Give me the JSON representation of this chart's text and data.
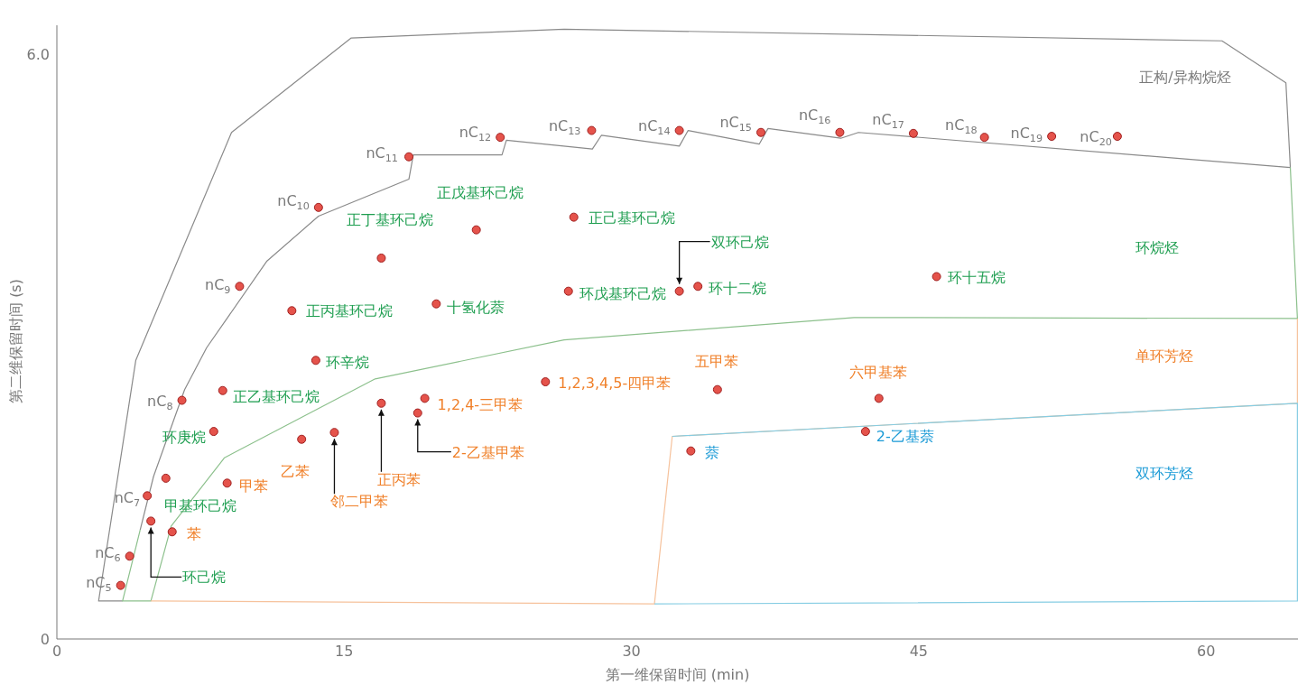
{
  "chart_data": {
    "type": "scatter",
    "xlabel": "第一维保留时间 (min)",
    "ylabel": "第二维保留时间 (s)",
    "xlim": [
      0,
      64.8
    ],
    "ylim": [
      0,
      6.3
    ],
    "xticks": [
      0,
      15,
      30,
      45,
      60
    ],
    "yticks": [
      0,
      {
        "value": 6,
        "label": "6.0"
      }
    ],
    "grid": false,
    "series": [
      {
        "marker": "circle",
        "color": "#e5534b",
        "x": [
          3.33,
          3.8,
          4.72,
          6.53,
          9.54,
          13.66,
          18.38,
          23.15,
          27.92,
          32.5,
          36.76,
          40.88,
          44.72,
          48.43,
          51.94,
          55.37,
          4.91,
          5.69,
          8.19,
          8.66,
          13.52,
          12.27,
          16.94,
          19.81,
          21.9,
          26.99,
          26.71,
          32.5,
          33.47,
          45.93,
          6.02,
          8.89,
          12.78,
          14.49,
          16.94,
          18.84,
          19.21,
          25.51,
          34.49,
          42.92,
          33.1,
          42.22
        ],
        "values": [
          0.55,
          0.85,
          1.47,
          2.45,
          3.62,
          4.43,
          4.95,
          5.15,
          5.22,
          5.22,
          5.2,
          5.2,
          5.19,
          5.15,
          5.16,
          5.16,
          1.21,
          1.65,
          2.13,
          2.55,
          2.86,
          3.37,
          3.91,
          3.44,
          4.2,
          4.33,
          3.57,
          3.57,
          3.62,
          3.72,
          1.1,
          1.6,
          2.05,
          2.12,
          2.42,
          2.32,
          2.47,
          2.64,
          2.56,
          2.47,
          1.93,
          2.13
        ]
      },
      {
        "type": "line",
        "marker": "none",
        "color": "#8a8a8a",
        "x": [
          3.43,
          2.18,
          4.12,
          9.12,
          15.37,
          26.48,
          60.83,
          64.17,
          64.4,
          41.85,
          40.93,
          37.13,
          36.67,
          32.96,
          32.5,
          28.43,
          27.96,
          23.47,
          23.24,
          18.61,
          18.38,
          13.66,
          10.97,
          7.82,
          6.67,
          5.05,
          4.35
        ],
        "values": [
          0.39,
          0.39,
          2.86,
          5.2,
          6.17,
          6.26,
          6.14,
          5.71,
          4.84,
          5.2,
          5.14,
          5.24,
          5.08,
          5.22,
          5.06,
          5.17,
          5.03,
          5.12,
          4.97,
          4.97,
          4.72,
          4.34,
          3.88,
          2.99,
          2.56,
          1.67,
          1.12
        ]
      },
      {
        "type": "line",
        "marker": "none",
        "color": "#8cc08c",
        "x": [
          64.4,
          64.77,
          41.62,
          26.48,
          16.62,
          8.75,
          5.97,
          4.91,
          3.43,
          4.35
        ],
        "values": [
          4.84,
          3.29,
          3.3,
          3.07,
          2.67,
          1.86,
          1.16,
          0.39,
          0.39,
          1.12
        ]
      },
      {
        "type": "line",
        "marker": "none",
        "color": "#f6c29c",
        "x": [
          4.91,
          31.2,
          32.13,
          64.77,
          64.77
        ],
        "values": [
          0.39,
          0.36,
          2.08,
          2.42,
          3.29
        ]
      },
      {
        "type": "line",
        "marker": "none",
        "color": "#86cde3",
        "x": [
          31.2,
          64.77,
          64.77,
          32.13
        ],
        "values": [
          0.36,
          0.39,
          2.42,
          2.08
        ]
      }
    ],
    "annotations": [
      {
        "text": "nC$_{5}$",
        "x": 3.33,
        "y": 0.55
      },
      {
        "text": "nC$_{6}$",
        "x": 3.8,
        "y": 0.85
      },
      {
        "text": "nC$_{7}$",
        "x": 4.72,
        "y": 1.47
      },
      {
        "text": "nC$_{8}$",
        "x": 6.53,
        "y": 2.45
      },
      {
        "text": "nC$_{9}$",
        "x": 9.54,
        "y": 3.62
      },
      {
        "text": "nC$_{10}$",
        "x": 13.66,
        "y": 4.43
      },
      {
        "text": "nC$_{11}$",
        "x": 18.38,
        "y": 4.95
      },
      {
        "text": "nC$_{12}$",
        "x": 23.15,
        "y": 5.15
      },
      {
        "text": "nC$_{13}$",
        "x": 27.92,
        "y": 5.22
      },
      {
        "text": "nC$_{14}$",
        "x": 32.5,
        "y": 5.22
      },
      {
        "text": "nC$_{15}$",
        "x": 36.76,
        "y": 5.2
      },
      {
        "text": "nC$_{16}$",
        "x": 40.88,
        "y": 5.2
      },
      {
        "text": "nC$_{17}$",
        "x": 44.72,
        "y": 5.19
      },
      {
        "text": "nC$_{18}$",
        "x": 48.43,
        "y": 5.15
      },
      {
        "text": "nC$_{19}$",
        "x": 51.94,
        "y": 5.16
      },
      {
        "text": "nC$_{20}$",
        "x": 55.37,
        "y": 5.16
      },
      "正构/异构烷烃",
      "环烷烃",
      "单环芳烃",
      "双环芳烃",
      {
        "text": "环己烷",
        "x": 4.91,
        "y": 1.21
      },
      {
        "text": "甲基环己烷",
        "x": 5.69,
        "y": 1.65
      },
      {
        "text": "环庚烷",
        "x": 8.19,
        "y": 2.13
      },
      {
        "text": "正乙基环己烷",
        "x": 8.66,
        "y": 2.55
      },
      {
        "text": "环辛烷",
        "x": 13.52,
        "y": 2.86
      },
      {
        "text": "正丙基环己烷",
        "x": 12.27,
        "y": 3.37
      },
      {
        "text": "正丁基环己烷",
        "x": 16.94,
        "y": 3.91
      },
      {
        "text": "十氢化萘",
        "x": 19.81,
        "y": 3.44
      },
      {
        "text": "正戊基环己烷",
        "x": 21.9,
        "y": 4.2
      },
      {
        "text": "正己基环己烷",
        "x": 26.99,
        "y": 4.33
      },
      {
        "text": "环戊基环己烷",
        "x": 26.71,
        "y": 3.57
      },
      {
        "text": "双环己烷",
        "x": 32.5,
        "y": 3.57
      },
      {
        "text": "环十二烷",
        "x": 33.47,
        "y": 3.62
      },
      {
        "text": "环十五烷",
        "x": 45.93,
        "y": 3.72
      },
      {
        "text": "苯",
        "x": 6.02,
        "y": 1.1
      },
      {
        "text": "甲苯",
        "x": 8.89,
        "y": 1.6
      },
      {
        "text": "乙苯",
        "x": 12.78,
        "y": 2.05
      },
      {
        "text": "邻二甲苯",
        "x": 14.49,
        "y": 2.12
      },
      {
        "text": "正丙苯",
        "x": 16.94,
        "y": 2.42
      },
      {
        "text": "2-乙基甲苯",
        "x": 18.84,
        "y": 2.32
      },
      {
        "text": "1,2,4-三甲苯",
        "x": 19.21,
        "y": 2.47
      },
      {
        "text": "1,2,3,4,5-四甲苯",
        "x": 25.51,
        "y": 2.64
      },
      {
        "text": "五甲苯",
        "x": 34.49,
        "y": 2.56
      },
      {
        "text": "六甲基苯",
        "x": 42.92,
        "y": 2.47
      },
      {
        "text": "萘",
        "x": 33.1,
        "y": 1.93
      },
      {
        "text": "2-乙基萘",
        "x": 42.22,
        "y": 2.13
      }
    ]
  }
}
